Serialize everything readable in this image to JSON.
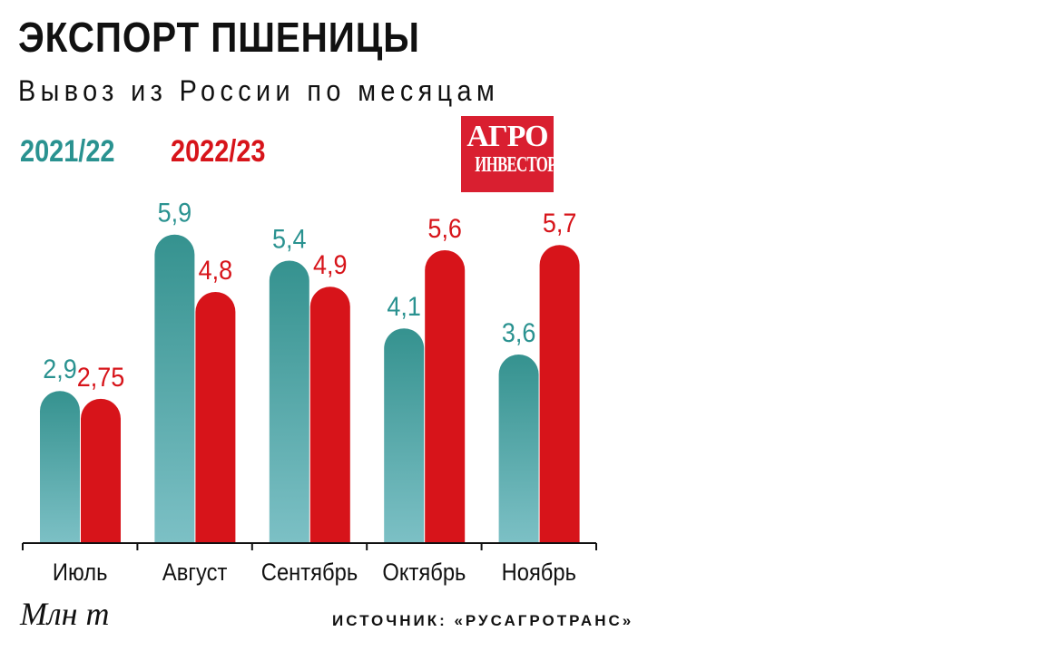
{
  "chart_data": {
    "type": "bar",
    "title": "ЭКСПОРТ ПШЕНИЦЫ",
    "subtitle": "Вывоз из России по месяцам",
    "categories": [
      "Июль",
      "Август",
      "Сентябрь",
      "Октябрь",
      "Ноябрь"
    ],
    "series": [
      {
        "name": "2021/22",
        "values": [
          2.9,
          5.9,
          5.4,
          4.1,
          3.6
        ],
        "labels": [
          "2,9",
          "5,9",
          "5,4",
          "4,1",
          "3,6"
        ],
        "color": "#2a9290"
      },
      {
        "name": "2022/23",
        "values": [
          2.75,
          4.8,
          4.9,
          5.6,
          5.7
        ],
        "labels": [
          "2,75",
          "4,8",
          "4,9",
          "5,6",
          "5,7"
        ],
        "color": "#d7141a"
      }
    ],
    "ylabel": "Млн т",
    "ylim": [
      0,
      6
    ],
    "grid": false,
    "legend": "top-left",
    "source": "ИСТОЧНИК: «РУСАГРОТРАНС»"
  },
  "logo": {
    "line1": "АГРО",
    "line2": "ИНВЕСТОР"
  }
}
